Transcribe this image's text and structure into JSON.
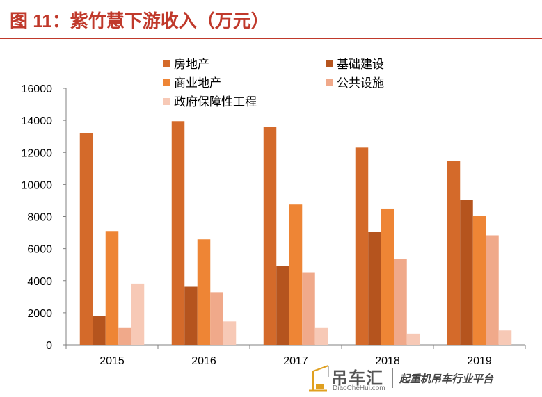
{
  "header": {
    "title": "图 11：紫竹慧下游收入（万元）"
  },
  "watermark": {
    "brand": "吊车汇",
    "url": "DiaoCheHui.com",
    "slogan": "起重机吊车行业平台"
  },
  "chart_data": {
    "type": "bar",
    "categories": [
      "2015",
      "2016",
      "2017",
      "2018",
      "2019"
    ],
    "series": [
      {
        "name": "房地产",
        "color": "#d46a2a",
        "values": [
          13200,
          13950,
          13600,
          12300,
          11450
        ]
      },
      {
        "name": "基础建设",
        "color": "#b5541e",
        "values": [
          1800,
          3620,
          4900,
          7050,
          9050
        ]
      },
      {
        "name": "商业地产",
        "color": "#ee8535",
        "values": [
          7100,
          6580,
          8750,
          8500,
          8050
        ]
      },
      {
        "name": "公共设施",
        "color": "#f0a98a",
        "values": [
          1050,
          3280,
          4530,
          5350,
          6830
        ]
      },
      {
        "name": "政府保障性工程",
        "color": "#f7c9b6",
        "values": [
          3820,
          1460,
          1050,
          700,
          900
        ]
      }
    ],
    "ylim": [
      0,
      16000
    ],
    "yticks": [
      "0",
      "2000",
      "4000",
      "6000",
      "8000",
      "10000",
      "12000",
      "14000",
      "16000"
    ],
    "grid": false,
    "legend_position": "top"
  }
}
